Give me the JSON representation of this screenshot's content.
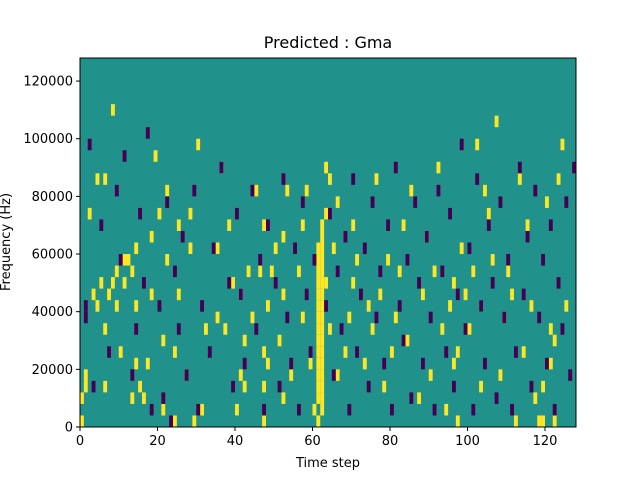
{
  "chart_data": {
    "type": "heatmap",
    "title": "Predicted : Gma",
    "xlabel": "Time step",
    "ylabel": "Frequency (Hz)",
    "xlim": [
      0,
      128
    ],
    "ylim": [
      0,
      128000
    ],
    "xticks": [
      "0",
      "20",
      "40",
      "60",
      "80",
      "100",
      "120"
    ],
    "yticks": [
      "0",
      "20000",
      "40000",
      "60000",
      "80000",
      "100000",
      "120000"
    ],
    "grid": false,
    "colors": {
      "background": "#21918c",
      "high": "#fde725",
      "low": "#440154"
    },
    "cell_height_hz": 4000,
    "high_cells": [
      [
        0,
        0
      ],
      [
        0,
        2
      ],
      [
        1,
        3
      ],
      [
        1,
        4
      ],
      [
        2,
        18
      ],
      [
        3,
        11
      ],
      [
        4,
        10
      ],
      [
        4,
        21
      ],
      [
        5,
        12
      ],
      [
        6,
        3
      ],
      [
        6,
        8
      ],
      [
        6,
        21
      ],
      [
        7,
        11
      ],
      [
        8,
        27
      ],
      [
        8,
        12
      ],
      [
        9,
        10
      ],
      [
        9,
        13
      ],
      [
        10,
        6
      ],
      [
        11,
        12
      ],
      [
        11,
        14
      ],
      [
        12,
        14
      ],
      [
        13,
        2
      ],
      [
        13,
        13
      ],
      [
        14,
        5
      ],
      [
        14,
        10
      ],
      [
        14,
        15
      ],
      [
        15,
        3
      ],
      [
        16,
        2
      ],
      [
        17,
        5
      ],
      [
        18,
        11
      ],
      [
        18,
        16
      ],
      [
        19,
        23
      ],
      [
        20,
        18
      ],
      [
        21,
        1
      ],
      [
        21,
        7
      ],
      [
        22,
        14
      ],
      [
        22,
        20
      ],
      [
        24,
        0
      ],
      [
        24,
        6
      ],
      [
        25,
        11
      ],
      [
        25,
        17
      ],
      [
        27,
        4
      ],
      [
        28,
        18
      ],
      [
        28,
        15
      ],
      [
        29,
        0
      ],
      [
        30,
        24
      ],
      [
        31,
        1
      ],
      [
        32,
        8
      ],
      [
        35,
        9
      ],
      [
        35,
        15
      ],
      [
        36,
        22
      ],
      [
        37,
        8
      ],
      [
        38,
        17
      ],
      [
        39,
        12
      ],
      [
        40,
        1
      ],
      [
        41,
        4
      ],
      [
        41,
        11
      ],
      [
        42,
        3
      ],
      [
        42,
        7
      ],
      [
        43,
        13
      ],
      [
        44,
        9
      ],
      [
        45,
        20
      ],
      [
        46,
        13
      ],
      [
        47,
        0
      ],
      [
        47,
        3
      ],
      [
        47,
        6
      ],
      [
        47,
        17
      ],
      [
        48,
        5
      ],
      [
        48,
        10
      ],
      [
        49,
        13
      ],
      [
        50,
        15
      ],
      [
        51,
        7
      ],
      [
        52,
        2
      ],
      [
        52,
        11
      ],
      [
        52,
        16
      ],
      [
        53,
        20
      ],
      [
        54,
        4
      ],
      [
        56,
        13
      ],
      [
        57,
        9
      ],
      [
        57,
        17
      ],
      [
        58,
        20
      ],
      [
        59,
        5
      ],
      [
        60,
        1
      ],
      [
        61,
        0
      ],
      [
        61,
        2
      ],
      [
        61,
        3
      ],
      [
        61,
        4
      ],
      [
        61,
        5
      ],
      [
        61,
        6
      ],
      [
        61,
        7
      ],
      [
        61,
        8
      ],
      [
        61,
        9
      ],
      [
        61,
        10
      ],
      [
        61,
        11
      ],
      [
        61,
        12
      ],
      [
        61,
        13
      ],
      [
        61,
        14
      ],
      [
        61,
        15
      ],
      [
        62,
        1
      ],
      [
        62,
        2
      ],
      [
        62,
        3
      ],
      [
        62,
        4
      ],
      [
        62,
        5
      ],
      [
        62,
        6
      ],
      [
        62,
        7
      ],
      [
        62,
        8
      ],
      [
        62,
        9
      ],
      [
        62,
        10
      ],
      [
        62,
        11
      ],
      [
        62,
        12
      ],
      [
        62,
        13
      ],
      [
        62,
        14
      ],
      [
        62,
        15
      ],
      [
        62,
        16
      ],
      [
        62,
        17
      ],
      [
        63,
        12
      ],
      [
        63,
        18
      ],
      [
        63,
        22
      ],
      [
        64,
        8
      ],
      [
        64,
        21
      ],
      [
        65,
        15
      ],
      [
        66,
        4
      ],
      [
        66,
        19
      ],
      [
        68,
        6
      ],
      [
        69,
        9
      ],
      [
        70,
        12
      ],
      [
        70,
        17
      ],
      [
        71,
        14
      ],
      [
        73,
        5
      ],
      [
        74,
        10
      ],
      [
        75,
        8
      ],
      [
        76,
        21
      ],
      [
        77,
        11
      ],
      [
        78,
        3
      ],
      [
        79,
        14
      ],
      [
        80,
        6
      ],
      [
        81,
        9
      ],
      [
        82,
        13
      ],
      [
        83,
        17
      ],
      [
        84,
        7
      ],
      [
        85,
        20
      ],
      [
        87,
        2
      ],
      [
        88,
        11
      ],
      [
        89,
        16
      ],
      [
        90,
        4
      ],
      [
        91,
        13
      ],
      [
        92,
        22
      ],
      [
        93,
        8
      ],
      [
        94,
        1
      ],
      [
        95,
        10
      ],
      [
        96,
        5
      ],
      [
        96,
        12
      ],
      [
        97,
        0
      ],
      [
        97,
        6
      ],
      [
        98,
        15
      ],
      [
        99,
        11
      ],
      [
        100,
        8
      ],
      [
        101,
        13
      ],
      [
        102,
        24
      ],
      [
        103,
        3
      ],
      [
        103,
        10
      ],
      [
        104,
        20
      ],
      [
        105,
        18
      ],
      [
        106,
        14
      ],
      [
        107,
        26
      ],
      [
        108,
        4
      ],
      [
        109,
        9
      ],
      [
        110,
        13
      ],
      [
        111,
        11
      ],
      [
        112,
        0
      ],
      [
        113,
        21
      ],
      [
        114,
        6
      ],
      [
        115,
        17
      ],
      [
        116,
        10
      ],
      [
        117,
        2
      ],
      [
        118,
        0
      ],
      [
        119,
        0
      ],
      [
        119,
        3
      ],
      [
        120,
        19
      ],
      [
        121,
        5
      ],
      [
        121,
        8
      ],
      [
        122,
        0
      ],
      [
        122,
        7
      ],
      [
        123,
        21
      ],
      [
        124,
        24
      ],
      [
        125,
        10
      ]
    ],
    "low_cells": [
      [
        1,
        9
      ],
      [
        1,
        10
      ],
      [
        2,
        24
      ],
      [
        3,
        3
      ],
      [
        5,
        17
      ],
      [
        7,
        6
      ],
      [
        9,
        20
      ],
      [
        10,
        14
      ],
      [
        11,
        23
      ],
      [
        13,
        4
      ],
      [
        14,
        8
      ],
      [
        15,
        18
      ],
      [
        16,
        12
      ],
      [
        17,
        25
      ],
      [
        18,
        1
      ],
      [
        20,
        10
      ],
      [
        21,
        2
      ],
      [
        22,
        19
      ],
      [
        23,
        0
      ],
      [
        24,
        13
      ],
      [
        25,
        8
      ],
      [
        26,
        16
      ],
      [
        27,
        4
      ],
      [
        29,
        20
      ],
      [
        30,
        1
      ],
      [
        31,
        10
      ],
      [
        33,
        6
      ],
      [
        34,
        15
      ],
      [
        36,
        22
      ],
      [
        38,
        12
      ],
      [
        39,
        3
      ],
      [
        40,
        18
      ],
      [
        41,
        11
      ],
      [
        42,
        5
      ],
      [
        44,
        20
      ],
      [
        45,
        8
      ],
      [
        46,
        14
      ],
      [
        47,
        1
      ],
      [
        48,
        17
      ],
      [
        50,
        12
      ],
      [
        51,
        3
      ],
      [
        52,
        21
      ],
      [
        53,
        9
      ],
      [
        54,
        5
      ],
      [
        55,
        15
      ],
      [
        56,
        1
      ],
      [
        57,
        19
      ],
      [
        58,
        11
      ],
      [
        59,
        6
      ],
      [
        60,
        14
      ],
      [
        63,
        10
      ],
      [
        64,
        18
      ],
      [
        65,
        4
      ],
      [
        66,
        13
      ],
      [
        67,
        8
      ],
      [
        68,
        16
      ],
      [
        69,
        1
      ],
      [
        70,
        21
      ],
      [
        71,
        6
      ],
      [
        72,
        11
      ],
      [
        73,
        15
      ],
      [
        74,
        3
      ],
      [
        75,
        19
      ],
      [
        76,
        9
      ],
      [
        77,
        13
      ],
      [
        78,
        5
      ],
      [
        79,
        17
      ],
      [
        80,
        1
      ],
      [
        81,
        22
      ],
      [
        82,
        10
      ],
      [
        83,
        7
      ],
      [
        84,
        14
      ],
      [
        85,
        2
      ],
      [
        86,
        19
      ],
      [
        87,
        12
      ],
      [
        88,
        5
      ],
      [
        89,
        16
      ],
      [
        90,
        9
      ],
      [
        91,
        1
      ],
      [
        92,
        20
      ],
      [
        93,
        13
      ],
      [
        94,
        6
      ],
      [
        95,
        18
      ],
      [
        96,
        3
      ],
      [
        97,
        11
      ],
      [
        98,
        24
      ],
      [
        99,
        8
      ],
      [
        100,
        15
      ],
      [
        101,
        1
      ],
      [
        102,
        21
      ],
      [
        103,
        10
      ],
      [
        104,
        5
      ],
      [
        105,
        17
      ],
      [
        106,
        12
      ],
      [
        107,
        2
      ],
      [
        108,
        19
      ],
      [
        109,
        9
      ],
      [
        110,
        14
      ],
      [
        111,
        1
      ],
      [
        112,
        6
      ],
      [
        113,
        22
      ],
      [
        114,
        11
      ],
      [
        115,
        16
      ],
      [
        116,
        3
      ],
      [
        117,
        20
      ],
      [
        118,
        9
      ],
      [
        119,
        14
      ],
      [
        120,
        5
      ],
      [
        121,
        17
      ],
      [
        122,
        1
      ],
      [
        123,
        12
      ],
      [
        124,
        8
      ],
      [
        125,
        19
      ],
      [
        126,
        4
      ],
      [
        127,
        22
      ]
    ]
  }
}
